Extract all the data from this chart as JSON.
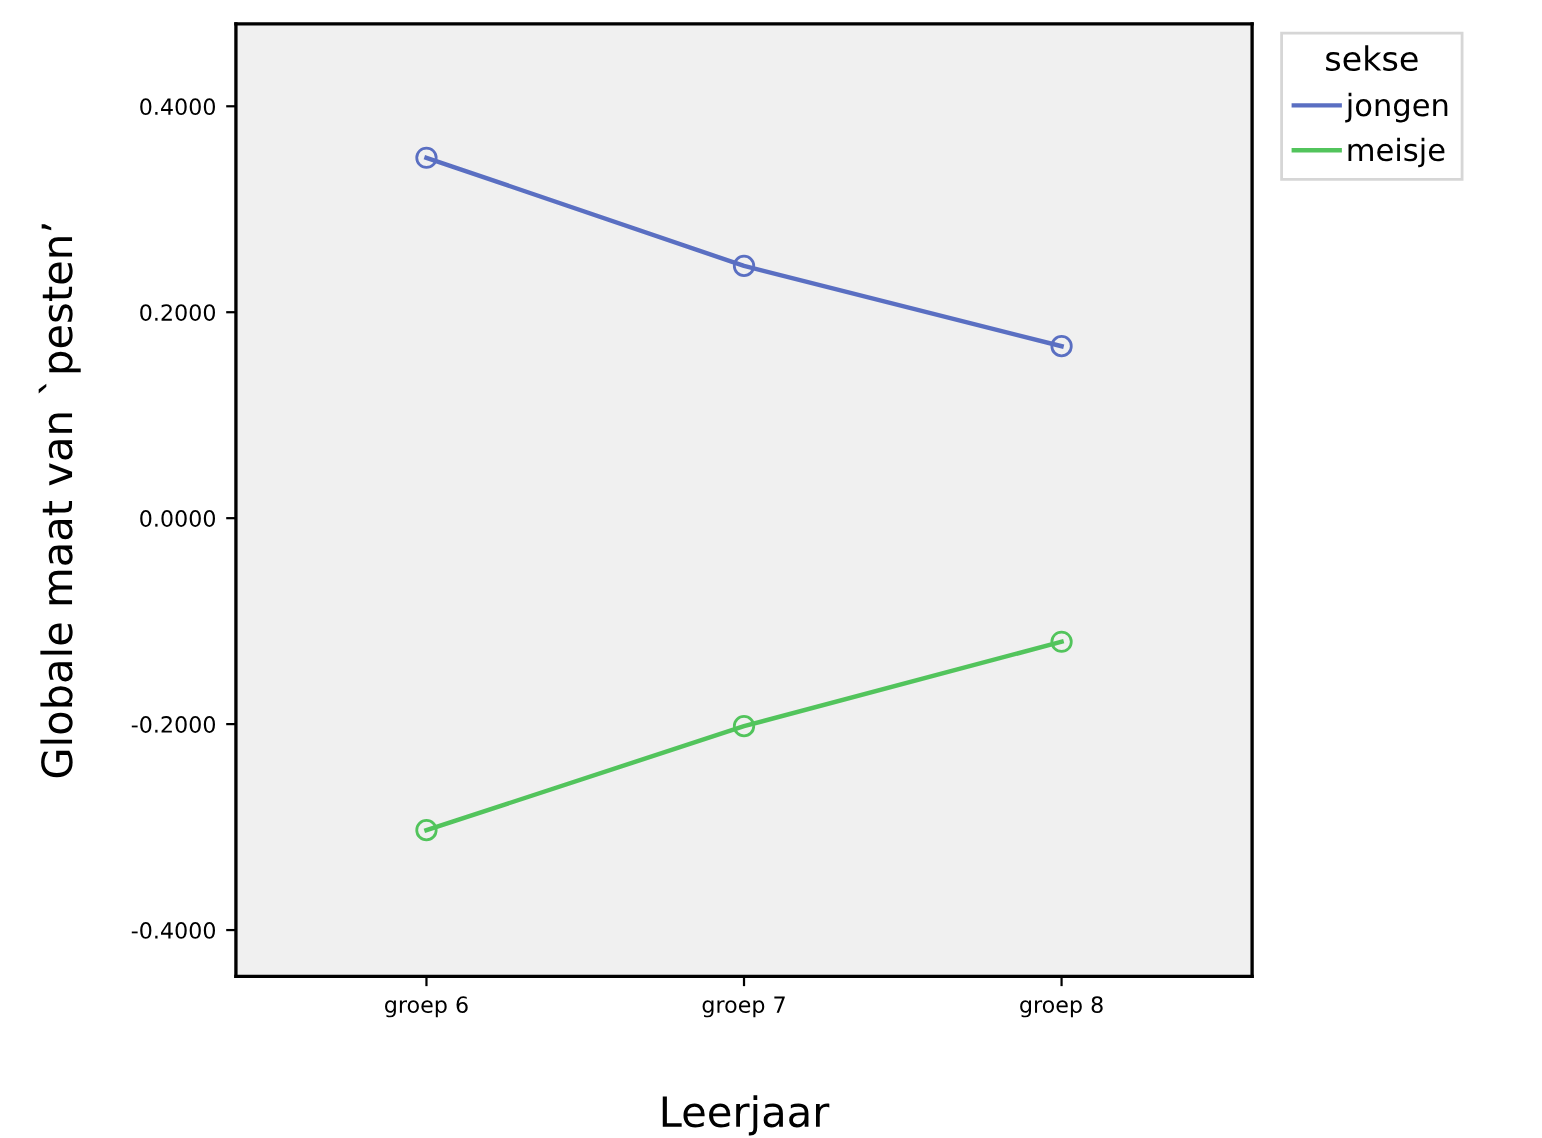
{
  "chart_data": {
    "type": "line",
    "xlabel": "Leerjaar",
    "ylabel": "Globale maat van `pesten’",
    "legend_title": "sekse",
    "categories": [
      "groep 6",
      "groep 7",
      "groep 8"
    ],
    "series": [
      {
        "name": "jongen",
        "color": "#5a6fc2",
        "values": [
          0.35,
          0.245,
          0.167
        ]
      },
      {
        "name": "meisje",
        "color": "#52c45c",
        "values": [
          -0.303,
          -0.202,
          -0.12
        ]
      }
    ],
    "ylim": [
      -0.445,
      0.48
    ],
    "yticks": [
      {
        "value": -0.4,
        "label": "-0.4000"
      },
      {
        "value": -0.2,
        "label": "-0.2000"
      },
      {
        "value": 0,
        "label": "0.0000"
      },
      {
        "value": 0.2,
        "label": "0.2000"
      },
      {
        "value": 0.4,
        "label": "0.4000"
      }
    ],
    "marker": "circle",
    "line_style": "solid",
    "grid": false,
    "legend": "top right"
  }
}
